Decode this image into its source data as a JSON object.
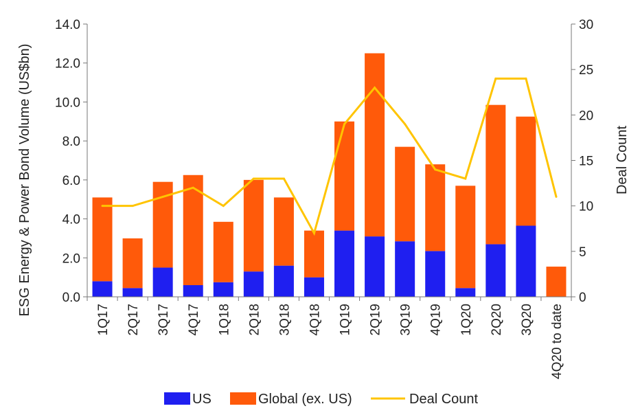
{
  "chart_data": {
    "type": "bar",
    "stacked": true,
    "categories": [
      "1Q17",
      "2Q17",
      "3Q17",
      "4Q17",
      "1Q18",
      "2Q18",
      "3Q18",
      "4Q18",
      "1Q19",
      "2Q19",
      "3Q19",
      "4Q19",
      "1Q20",
      "2Q20",
      "3Q20",
      "4Q20 to date"
    ],
    "series": [
      {
        "name": "US",
        "type": "bar",
        "axis": "left",
        "color": "#1f1ff0",
        "values": [
          0.8,
          0.45,
          1.5,
          0.6,
          0.75,
          1.3,
          1.6,
          1.0,
          3.4,
          3.1,
          2.85,
          2.35,
          0.45,
          2.7,
          3.65,
          0.0
        ]
      },
      {
        "name": "Global (ex. US)",
        "type": "bar",
        "axis": "left",
        "color": "#ff5a0a",
        "values": [
          4.3,
          2.55,
          4.4,
          5.65,
          3.1,
          4.7,
          3.5,
          2.4,
          5.6,
          9.4,
          4.85,
          4.45,
          5.25,
          7.15,
          5.6,
          1.55
        ]
      },
      {
        "name": "Deal Count",
        "type": "line",
        "axis": "right",
        "color": "#ffc400",
        "values": [
          10,
          10,
          11,
          12,
          10,
          13,
          13,
          7,
          19,
          23,
          19,
          14,
          13,
          24,
          24,
          11
        ]
      }
    ],
    "ylabel": "ESG Energy & Power Bond Volume (US$bn)",
    "y2label": "Deal Count",
    "xlabel": "",
    "ylim": [
      0,
      14
    ],
    "y2lim": [
      0,
      30
    ],
    "yticks": [
      "0.0",
      "2.0",
      "4.0",
      "6.0",
      "8.0",
      "10.0",
      "12.0",
      "14.0"
    ],
    "y2ticks": [
      "0",
      "5",
      "10",
      "15",
      "20",
      "25",
      "30"
    ],
    "grid": false,
    "legend_position": "bottom"
  }
}
